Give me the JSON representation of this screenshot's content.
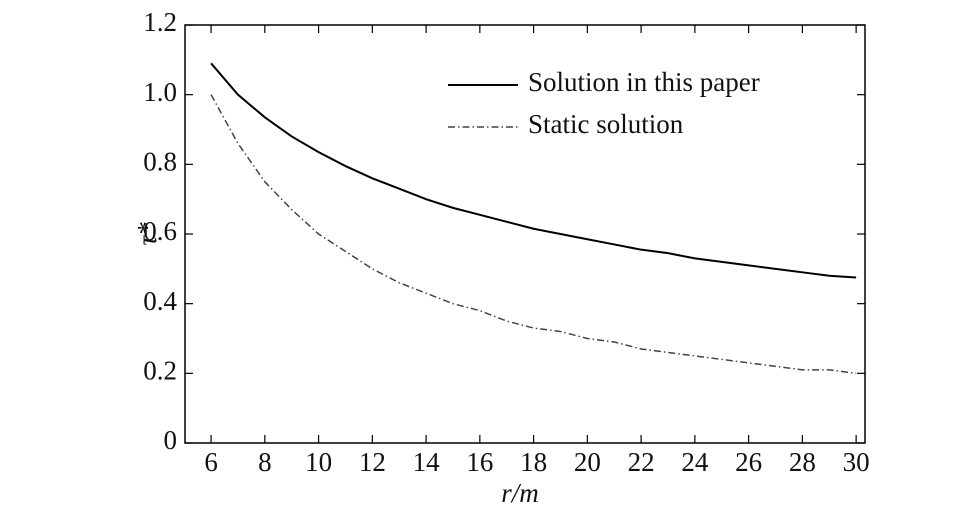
{
  "chart_data": {
    "type": "line",
    "xlabel": "r/m",
    "ylabel": "τ*",
    "x": [
      6,
      7,
      8,
      9,
      10,
      11,
      12,
      13,
      14,
      15,
      16,
      17,
      18,
      19,
      20,
      21,
      22,
      23,
      24,
      25,
      26,
      27,
      28,
      29,
      30
    ],
    "series": [
      {
        "name": "Solution in this paper",
        "color": "#000000",
        "style": "solid",
        "values": [
          1.09,
          1.0,
          0.935,
          0.88,
          0.835,
          0.795,
          0.76,
          0.73,
          0.7,
          0.675,
          0.655,
          0.635,
          0.615,
          0.6,
          0.585,
          0.57,
          0.555,
          0.545,
          0.53,
          0.52,
          0.51,
          0.5,
          0.49,
          0.48,
          0.475
        ]
      },
      {
        "name": "Static solution",
        "color": "#444444",
        "style": "dashdot",
        "values": [
          1.0,
          0.86,
          0.75,
          0.67,
          0.6,
          0.55,
          0.5,
          0.46,
          0.43,
          0.4,
          0.38,
          0.35,
          0.33,
          0.32,
          0.3,
          0.29,
          0.27,
          0.26,
          0.25,
          0.24,
          0.23,
          0.22,
          0.21,
          0.21,
          0.2
        ]
      }
    ],
    "xlim": [
      5.03,
      30.33
    ],
    "ylim": [
      0,
      1.2
    ],
    "xticks": [
      6,
      8,
      10,
      12,
      14,
      16,
      18,
      20,
      22,
      24,
      26,
      28,
      30
    ],
    "yticks": [
      0,
      0.2,
      0.4,
      0.6,
      0.8,
      {
        "value": 1,
        "label": "1.0"
      },
      1.2
    ],
    "legend": "upper-right"
  }
}
